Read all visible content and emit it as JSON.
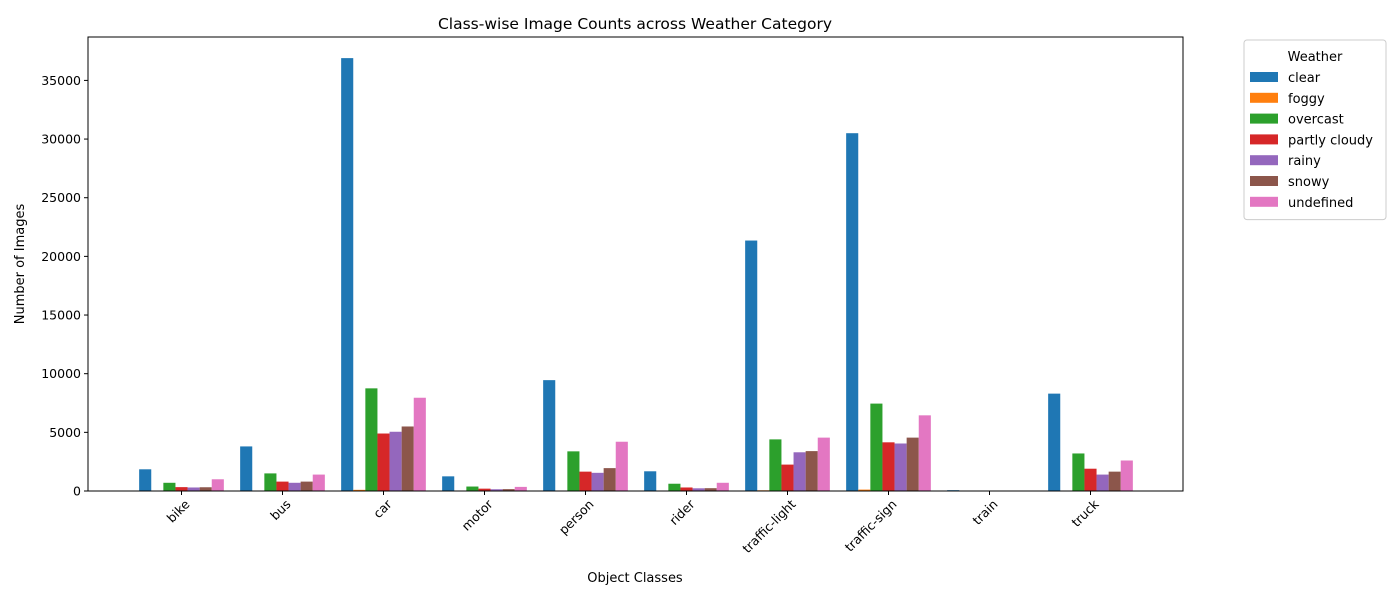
{
  "chart_data": {
    "type": "bar",
    "title": "Class-wise Image Counts across Weather Category",
    "xlabel": "Object Classes",
    "ylabel": "Number of Images",
    "categories": [
      "bike",
      "bus",
      "car",
      "motor",
      "person",
      "rider",
      "traffic-light",
      "traffic-sign",
      "train",
      "truck"
    ],
    "ylim": [
      0,
      38700
    ],
    "yticks": [
      0,
      5000,
      10000,
      15000,
      20000,
      25000,
      30000,
      35000
    ],
    "grid": false,
    "legend": {
      "title": "Weather",
      "placement": "outside upper-right"
    },
    "series": [
      {
        "name": "clear",
        "color": "#1f77b4",
        "values": [
          1850,
          3800,
          36900,
          1250,
          9450,
          1680,
          21350,
          30500,
          70,
          8300
        ]
      },
      {
        "name": "foggy",
        "color": "#ff7f0e",
        "values": [
          10,
          15,
          100,
          5,
          40,
          8,
          60,
          120,
          0,
          40
        ]
      },
      {
        "name": "overcast",
        "color": "#2ca02c",
        "values": [
          700,
          1500,
          8750,
          380,
          3380,
          620,
          4400,
          7450,
          20,
          3200
        ]
      },
      {
        "name": "partly cloudy",
        "color": "#d62728",
        "values": [
          330,
          800,
          4900,
          200,
          1650,
          300,
          2250,
          4150,
          15,
          1900
        ]
      },
      {
        "name": "rainy",
        "color": "#9467bd",
        "values": [
          300,
          700,
          5050,
          150,
          1550,
          230,
          3300,
          4050,
          10,
          1400
        ]
      },
      {
        "name": "snowy",
        "color": "#8c564b",
        "values": [
          320,
          800,
          5500,
          160,
          1950,
          240,
          3400,
          4550,
          10,
          1650
        ]
      },
      {
        "name": "undefined",
        "color": "#e377c2",
        "values": [
          1000,
          1400,
          7950,
          350,
          4200,
          700,
          4550,
          6450,
          15,
          2600
        ]
      }
    ]
  }
}
